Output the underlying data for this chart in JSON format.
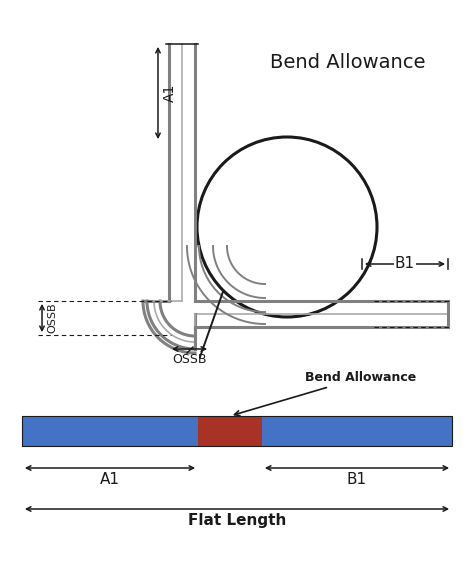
{
  "title": "Bend Allowance",
  "bg_color": "#ffffff",
  "blue_color": "#4472C4",
  "red_color": "#A93226",
  "gray_color": "#808080",
  "gray_light": "#aaaaaa",
  "dark_color": "#1a1a1a",
  "bend_allowance_label": "Bend Allowance",
  "flat_length_label": "Flat Length",
  "a1_label": "A1",
  "b1_label": "B1",
  "ossb_label": "OSSB",
  "fig_w": 4.74,
  "fig_h": 5.64,
  "dpi": 100
}
